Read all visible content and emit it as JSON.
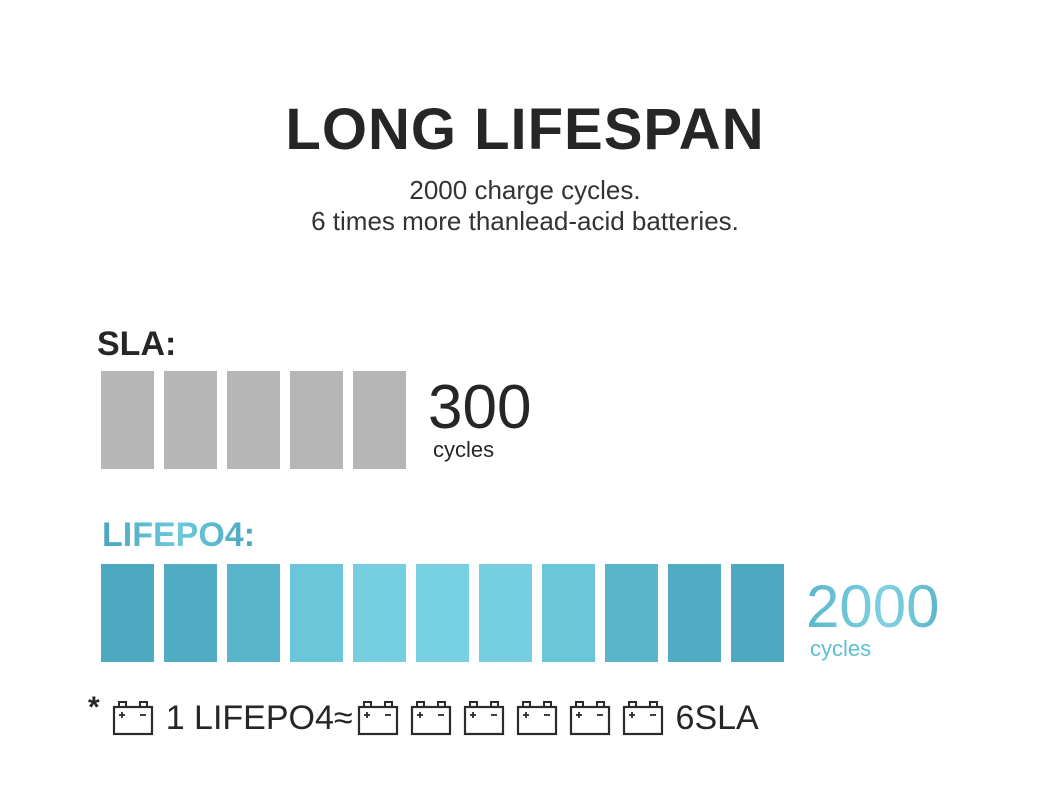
{
  "title": "LONG LIFESPAN",
  "subtitle_line1": "2000 charge cycles.",
  "subtitle_line2": "6 times more thanlead-acid batteries.",
  "sla": {
    "label": "SLA:",
    "value": "300",
    "unit": "cycles",
    "bar_count": 5,
    "bar_color": "#b6b6b6"
  },
  "lifepo4": {
    "label": "LIFEPO4:",
    "value": "2000",
    "unit": "cycles",
    "bar_count": 11,
    "bar_colors": [
      "#4ea8c1",
      "#52abc4",
      "#5ab4cb",
      "#6cc6d9",
      "#75cfe0",
      "#78d1e2",
      "#75cfe0",
      "#6cc6d9",
      "#5ab4cb",
      "#52abc4",
      "#4ea8c1"
    ]
  },
  "footnote": {
    "star": "*",
    "lifepo4_text": "1 LIFEPO4≈",
    "sla_text": "6SLA",
    "sla_icon_count": 6,
    "icon": "battery-icon"
  }
}
